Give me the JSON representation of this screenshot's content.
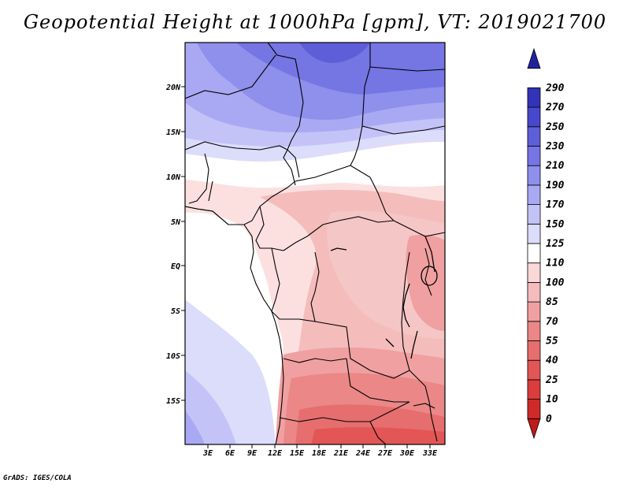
{
  "title": "Geopotential Height at 1000hPa [gpm], VT: 2019021700",
  "credit": "GrADS: IGES/COLA",
  "lat_labels": [
    "20N",
    "15N",
    "10N",
    "5N",
    "EQ",
    "5S",
    "10S",
    "15S"
  ],
  "lon_labels": [
    "3E",
    "6E",
    "9E",
    "12E",
    "15E",
    "18E",
    "21E",
    "24E",
    "27E",
    "30E",
    "33E"
  ],
  "colorbar": {
    "levels": [
      "0",
      "10",
      "25",
      "40",
      "55",
      "70",
      "85",
      "100",
      "110",
      "125",
      "150",
      "170",
      "190",
      "210",
      "230",
      "250",
      "270",
      "290"
    ],
    "colors": [
      "#c11a1a",
      "#cf2a2a",
      "#dc3c3c",
      "#e25656",
      "#e66e6e",
      "#eb8787",
      "#f0a0a0",
      "#f5bcbc",
      "#fad8d8",
      "#ffffff",
      "#dcdcfb",
      "#c3c3f7",
      "#a9a9f3",
      "#8f8fec",
      "#7575e4",
      "#5e5ed9",
      "#4848cc",
      "#3333b8",
      "#2222a0"
    ]
  }
}
